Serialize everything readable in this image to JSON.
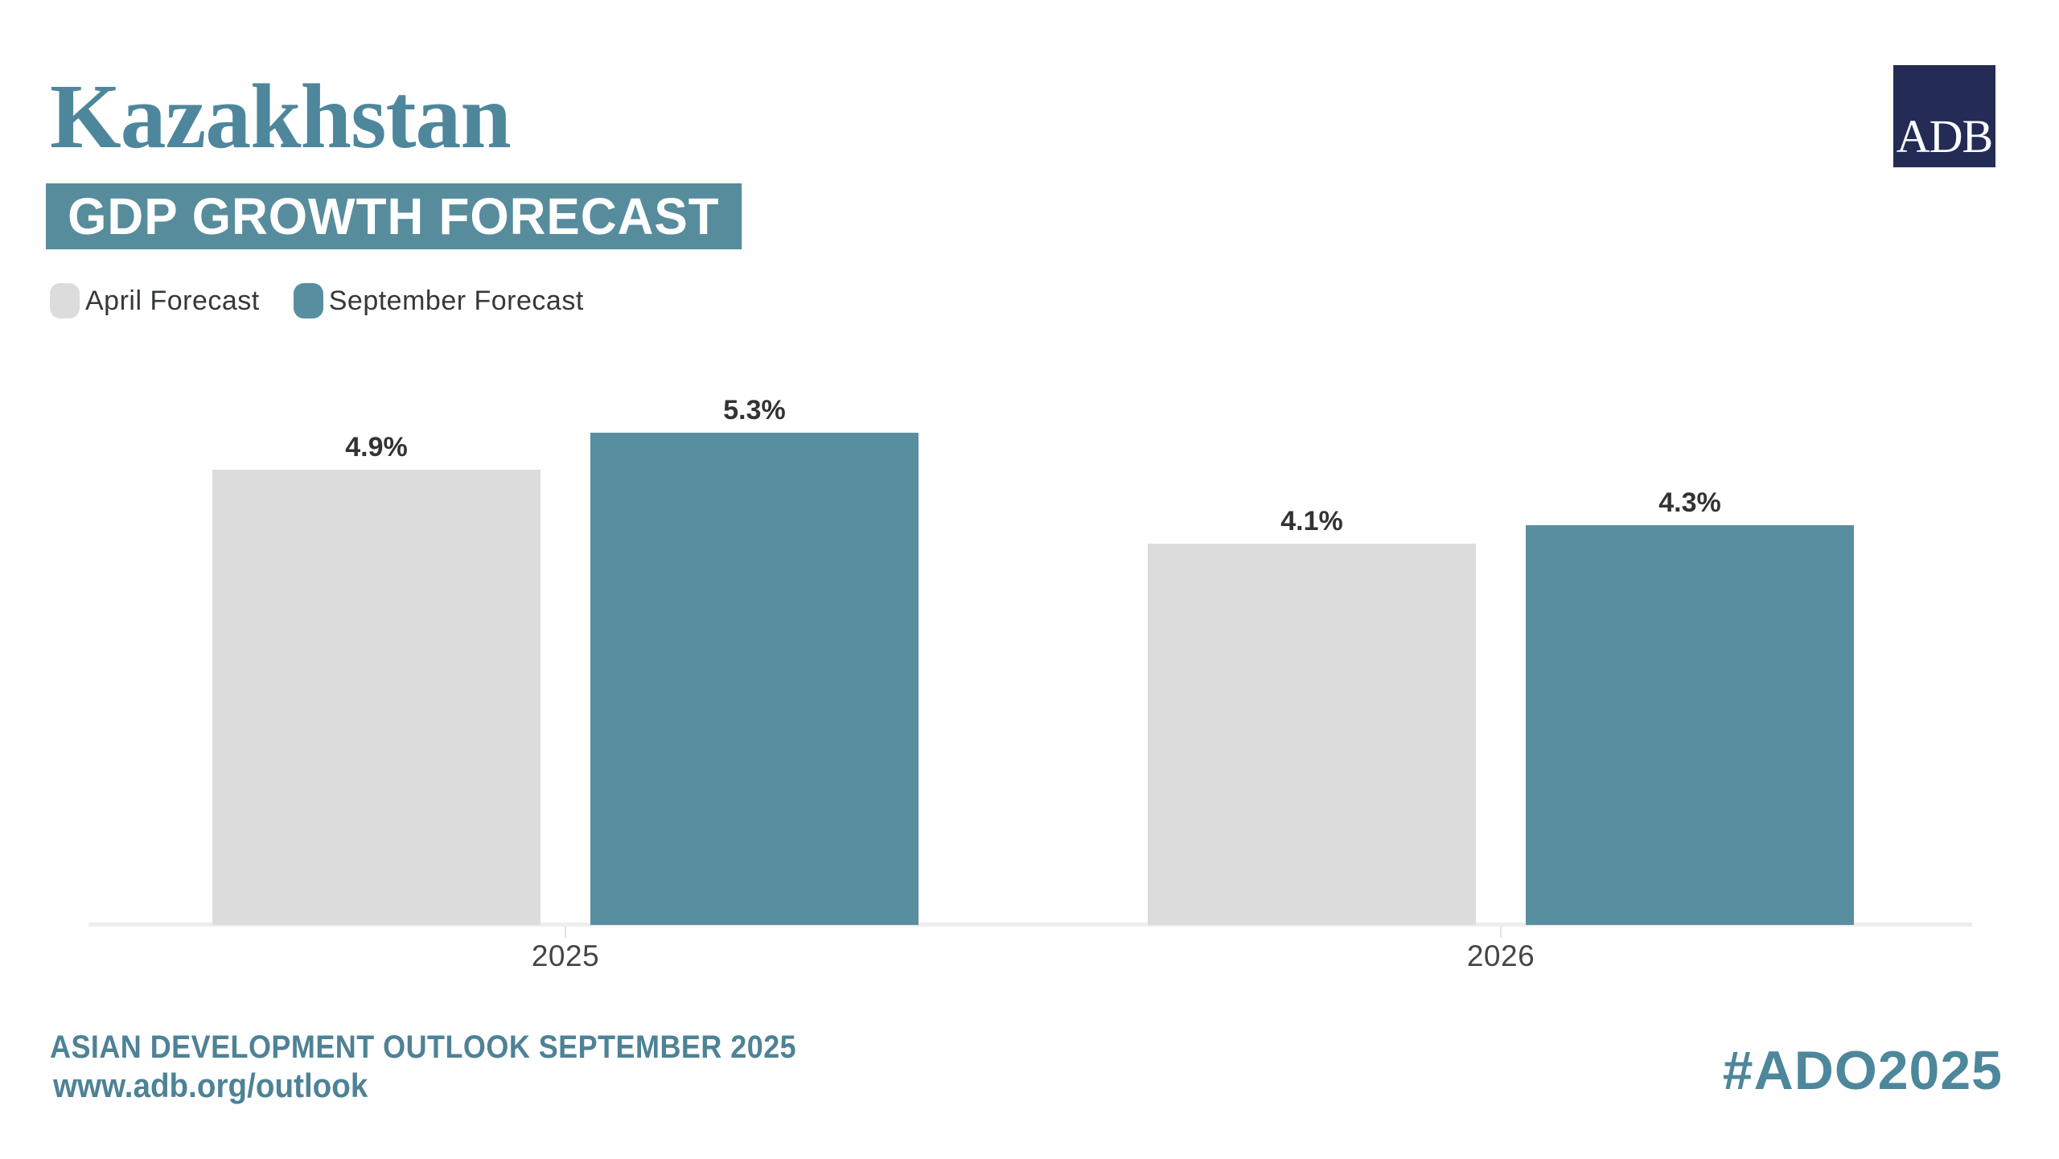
{
  "header": {
    "title": "Kazakhstan",
    "subtitle_badge": "GDP GROWTH FORECAST",
    "logo_text": "ADB"
  },
  "legend": [
    {
      "label": "April Forecast",
      "color": "#dcdcdc"
    },
    {
      "label": "September Forecast",
      "color": "#588fa0"
    }
  ],
  "chart_data": {
    "type": "bar",
    "title": "Kazakhstan GDP Growth Forecast",
    "categories": [
      "2025",
      "2026"
    ],
    "series": [
      {
        "name": "April Forecast",
        "color": "#dcdcdc",
        "values": [
          4.9,
          4.1
        ],
        "labels": [
          "4.9%",
          "4.1%"
        ]
      },
      {
        "name": "September Forecast",
        "color": "#588fa0",
        "values": [
          5.3,
          4.3
        ],
        "labels": [
          "5.3%",
          "4.3%"
        ]
      }
    ],
    "value_suffix": "%",
    "ylim": [
      0,
      5.75
    ],
    "grid": false,
    "legend_position": "top-left",
    "xlabel": "",
    "ylabel": ""
  },
  "footer": {
    "line1": "ASIAN DEVELOPMENT OUTLOOK SEPTEMBER 2025",
    "line2": "www.adb.org/outlook",
    "hashtag": "#ADO2025"
  },
  "colors": {
    "accent_teal": "#4e879c",
    "badge_background": "#578c9c",
    "bar_teal": "#588fa0",
    "bar_gray": "#dcdcdc",
    "logo_navy": "#242b55",
    "value_label": "#333333",
    "year_label": "#454545",
    "axis_line": "#ededed",
    "footer_teal": "#4e8296",
    "hashtag_teal": "#4d879b"
  }
}
